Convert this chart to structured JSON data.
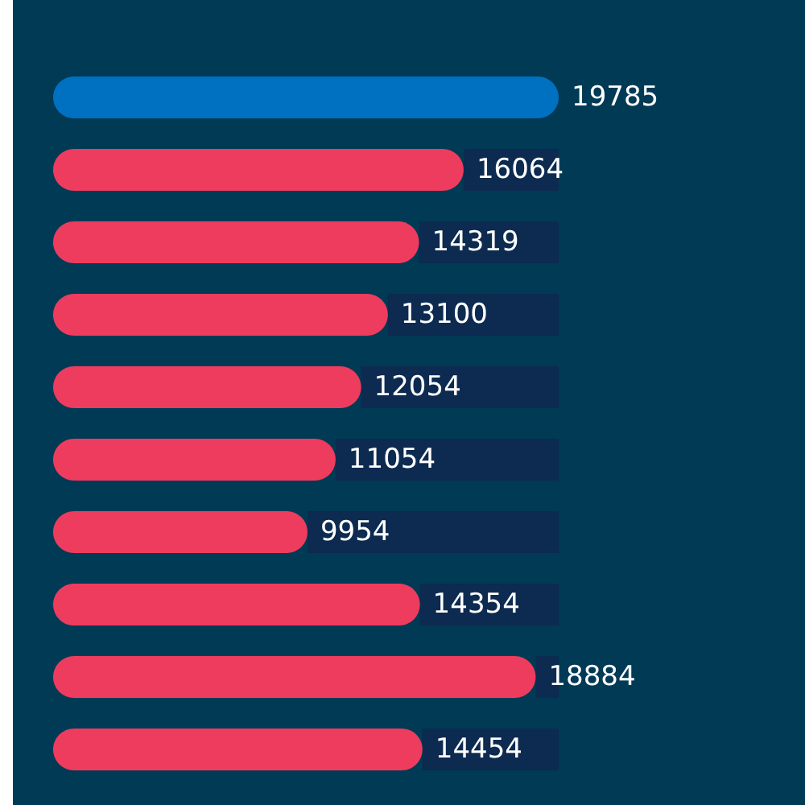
{
  "chart_data": {
    "type": "bar",
    "orientation": "horizontal",
    "stacked": true,
    "categories": [
      null,
      null,
      null,
      null,
      null,
      null,
      null,
      null,
      null,
      null
    ],
    "series": [
      {
        "colors": [
          "#0070c0",
          "#ee3c5e",
          "#ee3c5e",
          "#ee3c5e",
          "#ee3c5e",
          "#ee3c5e",
          "#ee3c5e",
          "#ee3c5e",
          "#ee3c5e",
          "#ee3c5e"
        ],
        "values": [
          19785,
          16064,
          14319,
          13100,
          12054,
          11054,
          9954,
          14354,
          18884,
          14454
        ],
        "value_labels": [
          "19785",
          "16064",
          "14319",
          "13100",
          "12054",
          "11054",
          "9954",
          "14354",
          "18884",
          "14454"
        ]
      },
      {
        "color": "#0d2a50",
        "values": [
          0,
          3721,
          5466,
          6685,
          7731,
          8731,
          9831,
          5431,
          901,
          5331
        ]
      }
    ]
  }
}
